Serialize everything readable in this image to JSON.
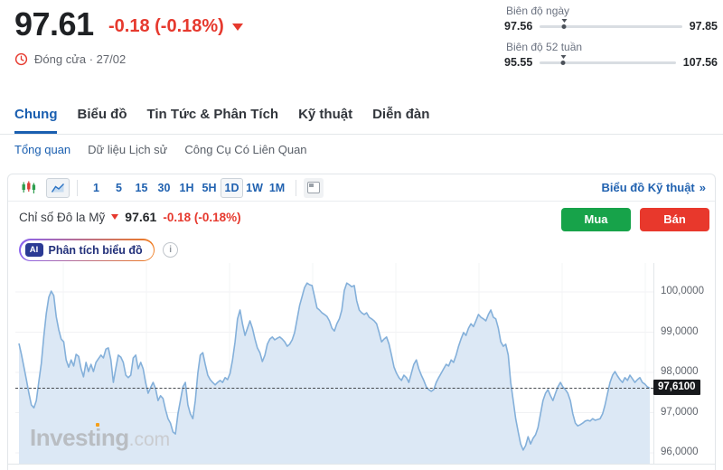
{
  "quote": {
    "price": "97.61",
    "change": "-0.18 (-0.18%)",
    "status": "Đóng cửa · 27/02",
    "day_range": {
      "label": "Biên độ ngày",
      "low": "97.56",
      "high": "97.85"
    },
    "week52_range": {
      "label": "Biên độ 52 tuần",
      "low": "95.55",
      "high": "107.56"
    }
  },
  "tabs": {
    "items": [
      {
        "label": "Chung",
        "active": true
      },
      {
        "label": "Biểu đồ",
        "active": false
      },
      {
        "label": "Tin Tức & Phân Tích",
        "active": false
      },
      {
        "label": "Kỹ thuật",
        "active": false
      },
      {
        "label": "Diễn đàn",
        "active": false
      }
    ]
  },
  "subnav": {
    "items": [
      {
        "label": "Tổng quan",
        "active": true
      },
      {
        "label": "Dữ liệu Lịch sử",
        "active": false
      },
      {
        "label": "Công Cụ Có Liên Quan",
        "active": false
      }
    ]
  },
  "toolbar": {
    "icons": {
      "candlestick": "candlestick-chart",
      "area": "area-chart",
      "layout": "layout-panel"
    },
    "timeframes": [
      "1",
      "5",
      "15",
      "30",
      "1H",
      "5H",
      "1D",
      "1W",
      "1M"
    ],
    "active_timeframe": "1D",
    "tech_chart_link": "Biểu đồ Kỹ thuật",
    "chevron": "»"
  },
  "chart_header": {
    "name": "Chỉ số Đô la Mỹ",
    "price": "97.61",
    "change": "-0.18 (-0.18%)",
    "buy_label": "Mua",
    "sell_label": "Bán"
  },
  "ai": {
    "badge": "AI",
    "label": "Phân tích biểu đồ"
  },
  "watermark": {
    "brand_a": "Invest",
    "brand_i": "i",
    "brand_b": "ng",
    "tld": ".com"
  },
  "colors": {
    "down_red": "#e6392e",
    "link_blue": "#1a5fb0",
    "buy_green": "#17a34a",
    "sell_red": "#e8382c",
    "line_blue": "#84b0da",
    "fill_blue": "#dce8f5",
    "badge_bg": "#17191c"
  },
  "chart_data": {
    "type": "area",
    "title": "Chỉ số Đô la Mỹ (1D)",
    "last_price": 97.61,
    "last_price_label": "97,6100",
    "ylim": [
      95.8,
      100.7
    ],
    "grid": true,
    "y_axis": [
      {
        "label": "100,0000",
        "value": 100.0
      },
      {
        "label": "99,0000",
        "value": 99.0
      },
      {
        "label": "98,0000",
        "value": 98.0
      },
      {
        "label": "97,0000",
        "value": 97.0
      },
      {
        "label": "96,0000",
        "value": 96.0
      }
    ],
    "values": [
      98.72,
      98.45,
      98.13,
      97.82,
      97.48,
      97.19,
      97.12,
      97.3,
      97.78,
      98.22,
      98.9,
      99.46,
      99.87,
      100.02,
      99.91,
      99.39,
      99.06,
      98.83,
      98.76,
      98.31,
      98.13,
      98.31,
      98.16,
      98.45,
      98.4,
      98.09,
      97.89,
      98.25,
      98.02,
      98.2,
      98.02,
      98.25,
      98.34,
      98.43,
      98.36,
      98.58,
      98.61,
      98.31,
      97.75,
      98.11,
      98.43,
      98.38,
      98.25,
      97.93,
      97.87,
      97.93,
      98.36,
      98.43,
      98.09,
      98.25,
      98.09,
      97.75,
      97.48,
      97.62,
      97.75,
      97.6,
      97.3,
      97.42,
      97.35,
      97.08,
      96.85,
      96.74,
      96.52,
      96.47,
      96.97,
      97.3,
      97.64,
      97.75,
      97.19,
      96.97,
      96.85,
      97.3,
      97.98,
      98.43,
      98.49,
      98.2,
      97.93,
      97.82,
      97.75,
      97.69,
      97.75,
      97.8,
      97.75,
      97.87,
      97.82,
      97.98,
      98.31,
      98.76,
      99.33,
      99.55,
      99.21,
      98.92,
      99.1,
      99.28,
      99.1,
      98.83,
      98.61,
      98.49,
      98.27,
      98.43,
      98.7,
      98.83,
      98.88,
      98.81,
      98.85,
      98.88,
      98.83,
      98.76,
      98.65,
      98.7,
      98.81,
      98.99,
      99.33,
      99.66,
      99.89,
      100.11,
      100.22,
      100.18,
      100.16,
      99.89,
      99.6,
      99.55,
      99.48,
      99.44,
      99.39,
      99.28,
      99.1,
      99.03,
      99.21,
      99.33,
      99.55,
      100.04,
      100.22,
      100.18,
      100.13,
      100.16,
      99.78,
      99.55,
      99.48,
      99.44,
      99.48,
      99.37,
      99.33,
      99.28,
      99.21,
      98.99,
      98.76,
      98.83,
      98.88,
      98.7,
      98.43,
      98.13,
      97.98,
      97.87,
      97.8,
      97.93,
      97.87,
      97.75,
      97.98,
      98.2,
      98.31,
      98.09,
      97.93,
      97.8,
      97.64,
      97.57,
      97.53,
      97.57,
      97.75,
      97.87,
      97.98,
      98.09,
      98.2,
      98.16,
      98.31,
      98.25,
      98.43,
      98.65,
      98.83,
      98.99,
      98.92,
      99.1,
      99.21,
      99.14,
      99.28,
      99.44,
      99.37,
      99.33,
      99.28,
      99.44,
      99.55,
      99.37,
      99.33,
      99.1,
      98.76,
      98.65,
      98.7,
      98.43,
      97.75,
      97.3,
      96.85,
      96.52,
      96.22,
      96.07,
      96.18,
      96.4,
      96.22,
      96.36,
      96.45,
      96.63,
      96.97,
      97.3,
      97.48,
      97.57,
      97.42,
      97.3,
      97.48,
      97.64,
      97.75,
      97.64,
      97.57,
      97.48,
      97.3,
      96.97,
      96.74,
      96.67,
      96.7,
      96.74,
      96.79,
      96.81,
      96.79,
      96.85,
      96.81,
      96.83,
      96.85,
      96.97,
      97.19,
      97.48,
      97.75,
      97.93,
      98.02,
      97.91,
      97.82,
      97.75,
      97.87,
      97.8,
      97.93,
      97.84,
      97.75,
      97.82,
      97.87,
      97.75,
      97.71,
      97.64,
      97.61
    ]
  }
}
